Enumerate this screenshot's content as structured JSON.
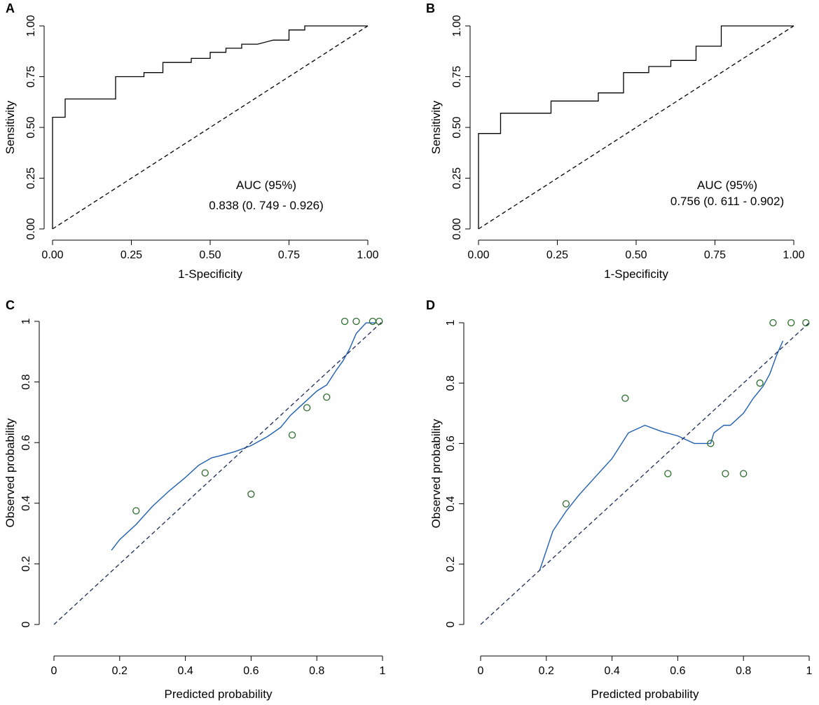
{
  "chart_data": [
    {
      "panel": "A",
      "type": "line",
      "subtype": "roc",
      "xlabel": "1-Specificity",
      "ylabel": "Sensitivity",
      "xlim": [
        0,
        1
      ],
      "ylim": [
        0,
        1
      ],
      "x_ticks": [
        "0.00",
        "0.25",
        "0.50",
        "0.75",
        "1.00"
      ],
      "y_ticks": [
        "0.00",
        "0.25",
        "0.50",
        "0.75",
        "1.00"
      ],
      "grid": false,
      "annotation": [
        "AUC (95%)",
        "0.838 (0. 749 - 0.926)"
      ],
      "series": [
        {
          "name": "ROC",
          "style": "solid",
          "color": "#000000",
          "points": [
            [
              0,
              0
            ],
            [
              0,
              0.55
            ],
            [
              0.04,
              0.55
            ],
            [
              0.04,
              0.64
            ],
            [
              0.2,
              0.64
            ],
            [
              0.2,
              0.75
            ],
            [
              0.29,
              0.75
            ],
            [
              0.29,
              0.77
            ],
            [
              0.35,
              0.77
            ],
            [
              0.35,
              0.82
            ],
            [
              0.44,
              0.82
            ],
            [
              0.44,
              0.84
            ],
            [
              0.5,
              0.84
            ],
            [
              0.5,
              0.87
            ],
            [
              0.55,
              0.87
            ],
            [
              0.55,
              0.89
            ],
            [
              0.6,
              0.89
            ],
            [
              0.6,
              0.91
            ],
            [
              0.65,
              0.91
            ],
            [
              0.7,
              0.93
            ],
            [
              0.75,
              0.93
            ],
            [
              0.75,
              0.98
            ],
            [
              0.8,
              0.98
            ],
            [
              0.8,
              1
            ],
            [
              1,
              1
            ]
          ]
        },
        {
          "name": "Reference",
          "style": "dashed",
          "color": "#000000",
          "points": [
            [
              0,
              0
            ],
            [
              1,
              1
            ]
          ]
        }
      ]
    },
    {
      "panel": "B",
      "type": "line",
      "subtype": "roc",
      "xlabel": "1-Specificity",
      "ylabel": "Sensitivity",
      "xlim": [
        0,
        1
      ],
      "ylim": [
        0,
        1
      ],
      "x_ticks": [
        "0.00",
        "0.25",
        "0.50",
        "0.75",
        "1.00"
      ],
      "y_ticks": [
        "0.00",
        "0.25",
        "0.50",
        "0.75",
        "1.00"
      ],
      "grid": false,
      "annotation": [
        "AUC (95%)",
        "0.756 (0. 611 - 0.902)"
      ],
      "series": [
        {
          "name": "ROC",
          "style": "solid",
          "color": "#000000",
          "points": [
            [
              0,
              0
            ],
            [
              0,
              0.47
            ],
            [
              0.07,
              0.47
            ],
            [
              0.07,
              0.57
            ],
            [
              0.23,
              0.57
            ],
            [
              0.23,
              0.63
            ],
            [
              0.38,
              0.63
            ],
            [
              0.38,
              0.67
            ],
            [
              0.46,
              0.67
            ],
            [
              0.46,
              0.77
            ],
            [
              0.54,
              0.77
            ],
            [
              0.54,
              0.8
            ],
            [
              0.61,
              0.8
            ],
            [
              0.61,
              0.83
            ],
            [
              0.69,
              0.83
            ],
            [
              0.69,
              0.9
            ],
            [
              0.77,
              0.9
            ],
            [
              0.77,
              1
            ],
            [
              1,
              1
            ]
          ]
        },
        {
          "name": "Reference",
          "style": "dashed",
          "color": "#000000",
          "points": [
            [
              0,
              0
            ],
            [
              1,
              1
            ]
          ]
        }
      ]
    },
    {
      "panel": "C",
      "type": "scatter",
      "subtype": "calibration",
      "xlabel": "Predicted probability",
      "ylabel": "Observed probability",
      "xlim": [
        0,
        1
      ],
      "ylim": [
        0,
        1
      ],
      "x_ticks": [
        "0",
        "0.2",
        "0.4",
        "0.6",
        "0.8",
        "1"
      ],
      "y_ticks": [
        "0",
        "0.2",
        "0.4",
        "0.6",
        "0.8",
        "1"
      ],
      "grid": false,
      "series": [
        {
          "name": "Calibration curve",
          "style": "line",
          "color": "#1f5fb0",
          "points": [
            [
              0.175,
              0.245
            ],
            [
              0.2,
              0.28
            ],
            [
              0.25,
              0.33
            ],
            [
              0.3,
              0.39
            ],
            [
              0.35,
              0.44
            ],
            [
              0.4,
              0.485
            ],
            [
              0.44,
              0.525
            ],
            [
              0.48,
              0.55
            ],
            [
              0.5,
              0.555
            ],
            [
              0.55,
              0.57
            ],
            [
              0.6,
              0.59
            ],
            [
              0.65,
              0.62
            ],
            [
              0.69,
              0.65
            ],
            [
              0.72,
              0.69
            ],
            [
              0.75,
              0.72
            ],
            [
              0.78,
              0.75
            ],
            [
              0.8,
              0.77
            ],
            [
              0.83,
              0.79
            ],
            [
              0.86,
              0.84
            ],
            [
              0.88,
              0.87
            ],
            [
              0.9,
              0.91
            ],
            [
              0.92,
              0.96
            ],
            [
              0.95,
              0.995
            ],
            [
              0.98,
              0.995
            ]
          ]
        },
        {
          "name": "Ideal",
          "style": "dashed",
          "color": "#1a2a5a",
          "points": [
            [
              0,
              0
            ],
            [
              1,
              1
            ]
          ]
        },
        {
          "name": "Grouped observations",
          "style": "circles",
          "color": "#2a6b2a",
          "points": [
            [
              0.25,
              0.375
            ],
            [
              0.46,
              0.5
            ],
            [
              0.6,
              0.43
            ],
            [
              0.725,
              0.625
            ],
            [
              0.77,
              0.715
            ],
            [
              0.83,
              0.75
            ],
            [
              0.885,
              1
            ],
            [
              0.92,
              1
            ],
            [
              0.97,
              1
            ],
            [
              0.99,
              1
            ]
          ]
        }
      ]
    },
    {
      "panel": "D",
      "type": "scatter",
      "subtype": "calibration",
      "xlabel": "Predicted probability",
      "ylabel": "Observed probability",
      "xlim": [
        0,
        1
      ],
      "ylim": [
        0,
        1
      ],
      "x_ticks": [
        "0",
        "0.2",
        "0.4",
        "0.6",
        "0.8",
        "1"
      ],
      "y_ticks": [
        "0",
        "0.2",
        "0.4",
        "0.6",
        "0.8",
        "1"
      ],
      "grid": false,
      "series": [
        {
          "name": "Calibration curve",
          "style": "line",
          "color": "#1f5fb0",
          "points": [
            [
              0.18,
              0.18
            ],
            [
              0.22,
              0.31
            ],
            [
              0.26,
              0.375
            ],
            [
              0.3,
              0.43
            ],
            [
              0.35,
              0.49
            ],
            [
              0.4,
              0.55
            ],
            [
              0.45,
              0.635
            ],
            [
              0.5,
              0.66
            ],
            [
              0.55,
              0.64
            ],
            [
              0.6,
              0.625
            ],
            [
              0.65,
              0.6
            ],
            [
              0.7,
              0.6
            ],
            [
              0.71,
              0.635
            ],
            [
              0.74,
              0.66
            ],
            [
              0.76,
              0.66
            ],
            [
              0.8,
              0.7
            ],
            [
              0.83,
              0.75
            ],
            [
              0.86,
              0.79
            ],
            [
              0.88,
              0.83
            ],
            [
              0.9,
              0.89
            ],
            [
              0.92,
              0.94
            ]
          ]
        },
        {
          "name": "Ideal",
          "style": "dashed",
          "color": "#1a2a5a",
          "points": [
            [
              0,
              0
            ],
            [
              1,
              1
            ]
          ]
        },
        {
          "name": "Grouped observations",
          "style": "circles",
          "color": "#2a6b2a",
          "points": [
            [
              0.26,
              0.4
            ],
            [
              0.44,
              0.75
            ],
            [
              0.57,
              0.5
            ],
            [
              0.7,
              0.6
            ],
            [
              0.745,
              0.5
            ],
            [
              0.8,
              0.5
            ],
            [
              0.85,
              0.8
            ],
            [
              0.89,
              1
            ],
            [
              0.945,
              1
            ],
            [
              0.99,
              1
            ]
          ]
        }
      ]
    }
  ]
}
